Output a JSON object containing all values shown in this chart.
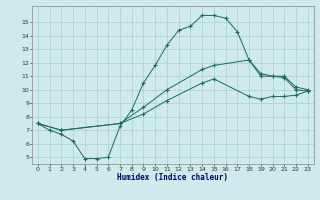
{
  "xlabel": "Humidex (Indice chaleur)",
  "bg_color": "#ceeaea",
  "grid_color": "#aacece",
  "line_color": "#1a6b5a",
  "xlim": [
    -0.5,
    23.5
  ],
  "ylim": [
    4.5,
    16.2
  ],
  "xticks": [
    0,
    1,
    2,
    3,
    4,
    5,
    6,
    7,
    8,
    9,
    10,
    11,
    12,
    13,
    14,
    15,
    16,
    17,
    18,
    19,
    20,
    21,
    22,
    23
  ],
  "yticks": [
    5,
    6,
    7,
    8,
    9,
    10,
    11,
    12,
    13,
    14,
    15
  ],
  "line1_x": [
    0,
    1,
    2,
    3,
    4,
    5,
    6,
    7,
    8,
    9,
    10,
    11,
    12,
    13,
    14,
    15,
    16,
    17,
    18,
    19,
    20,
    21,
    22,
    23
  ],
  "line1_y": [
    7.5,
    7.0,
    6.7,
    6.2,
    4.9,
    4.9,
    5.0,
    7.3,
    8.5,
    10.5,
    11.8,
    13.3,
    14.4,
    14.7,
    15.5,
    15.5,
    15.3,
    14.3,
    12.2,
    11.0,
    11.0,
    10.9,
    10.0,
    9.9
  ],
  "line2_x": [
    0,
    2,
    7,
    9,
    11,
    14,
    15,
    18,
    19,
    20,
    21,
    22,
    23
  ],
  "line2_y": [
    7.5,
    7.0,
    7.5,
    8.7,
    10.0,
    11.5,
    11.8,
    12.2,
    11.2,
    11.0,
    11.0,
    10.2,
    10.0
  ],
  "line3_x": [
    0,
    2,
    7,
    9,
    11,
    14,
    15,
    18,
    19,
    20,
    21,
    22,
    23
  ],
  "line3_y": [
    7.5,
    7.0,
    7.5,
    8.2,
    9.2,
    10.5,
    10.8,
    9.5,
    9.3,
    9.5,
    9.5,
    9.6,
    9.9
  ]
}
